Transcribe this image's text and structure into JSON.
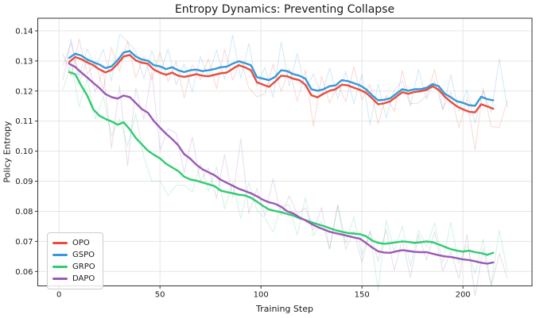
{
  "title": "Entropy Dynamics: Preventing Collapse",
  "axes": {
    "xlabel": "Training Step",
    "ylabel": "Policy Entropy",
    "x_ticks": [
      0,
      50,
      100,
      150,
      200
    ],
    "y_ticks": [
      0.06,
      0.07,
      0.08,
      0.09,
      0.1,
      0.11,
      0.12,
      0.13,
      0.14
    ],
    "xlim": [
      -10.5,
      234.2
    ],
    "ylim": [
      0.0552,
      0.1442
    ],
    "grid": true,
    "grid_color": "#e5e5e5",
    "spine_color": "#333333",
    "tick_color": "#333333"
  },
  "legend": {
    "position": "lower left",
    "entries": [
      {
        "label": "OPO",
        "color": "#e74c3c"
      },
      {
        "label": "GSPO",
        "color": "#3498db"
      },
      {
        "label": "GRPO",
        "color": "#2ecc71"
      },
      {
        "label": "DAPO",
        "color": "#9b59b6"
      }
    ]
  },
  "chart_data": {
    "type": "line",
    "title": "Entropy Dynamics: Preventing Collapse",
    "xlabel": "Training Step",
    "ylabel": "Policy Entropy",
    "x": [
      5,
      8,
      11,
      14,
      17,
      20,
      23,
      26,
      29,
      32,
      35,
      38,
      41,
      44,
      47,
      50,
      53,
      56,
      59,
      62,
      65,
      68,
      71,
      74,
      77,
      80,
      83,
      86,
      89,
      92,
      95,
      98,
      101,
      104,
      107,
      110,
      113,
      116,
      119,
      122,
      125,
      128,
      131,
      134,
      137,
      140,
      143,
      146,
      149,
      152,
      155,
      158,
      161,
      164,
      167,
      170,
      173,
      176,
      179,
      182,
      185,
      188,
      191,
      194,
      197,
      200,
      203,
      206,
      209,
      212,
      215
    ],
    "series": [
      {
        "name": "OPO",
        "color": "#e74c3c",
        "values": [
          0.1296,
          0.1313,
          0.1306,
          0.1295,
          0.1286,
          0.1272,
          0.1262,
          0.127,
          0.129,
          0.1315,
          0.132,
          0.1302,
          0.1294,
          0.1291,
          0.1271,
          0.1261,
          0.1254,
          0.1261,
          0.1251,
          0.1247,
          0.1251,
          0.1256,
          0.1251,
          0.1249,
          0.1254,
          0.1259,
          0.1261,
          0.1274,
          0.1286,
          0.1279,
          0.1269,
          0.1229,
          0.1221,
          0.1214,
          0.1231,
          0.1251,
          0.1249,
          0.1241,
          0.1236,
          0.1221,
          0.1186,
          0.1179,
          0.1191,
          0.1201,
          0.1206,
          0.1221,
          0.1219,
          0.1211,
          0.1204,
          0.1194,
          0.1176,
          0.1156,
          0.1159,
          0.1166,
          0.1181,
          0.1196,
          0.1191,
          0.1197,
          0.1199,
          0.1204,
          0.1216,
          0.1204,
          0.1181,
          0.1164,
          0.1149,
          0.1139,
          0.1131,
          0.1129,
          0.1156,
          0.1149,
          0.1141
        ]
      },
      {
        "name": "GSPO",
        "color": "#3498db",
        "values": [
          0.131,
          0.1324,
          0.1318,
          0.1305,
          0.1296,
          0.1288,
          0.1276,
          0.1282,
          0.1302,
          0.1328,
          0.1333,
          0.1315,
          0.1305,
          0.1301,
          0.1286,
          0.1282,
          0.1273,
          0.1279,
          0.1269,
          0.1263,
          0.1269,
          0.1271,
          0.1266,
          0.1269,
          0.1273,
          0.1279,
          0.1281,
          0.1291,
          0.1299,
          0.1293,
          0.1286,
          0.1246,
          0.1241,
          0.1236,
          0.1247,
          0.1269,
          0.1266,
          0.1256,
          0.1251,
          0.1241,
          0.1206,
          0.1201,
          0.1206,
          0.1216,
          0.1219,
          0.1236,
          0.1233,
          0.1226,
          0.1219,
          0.1206,
          0.1186,
          0.1169,
          0.1171,
          0.1176,
          0.1191,
          0.1206,
          0.1201,
          0.1206,
          0.1206,
          0.1211,
          0.1223,
          0.1216,
          0.1191,
          0.1179,
          0.1166,
          0.1161,
          0.1153,
          0.1151,
          0.1181,
          0.1173,
          0.1169
        ]
      },
      {
        "name": "GRPO",
        "color": "#2ecc71",
        "values": [
          0.1263,
          0.1256,
          0.1218,
          0.1185,
          0.1139,
          0.1118,
          0.1107,
          0.1099,
          0.1088,
          0.1096,
          0.1073,
          0.1044,
          0.1023,
          0.1002,
          0.0988,
          0.0976,
          0.0958,
          0.0946,
          0.0934,
          0.0915,
          0.0906,
          0.0902,
          0.0896,
          0.089,
          0.0884,
          0.0869,
          0.0864,
          0.086,
          0.0855,
          0.0853,
          0.0845,
          0.0832,
          0.0818,
          0.0806,
          0.0801,
          0.0797,
          0.0791,
          0.0786,
          0.0777,
          0.0771,
          0.0764,
          0.0757,
          0.0751,
          0.0744,
          0.0737,
          0.0732,
          0.0728,
          0.0726,
          0.0724,
          0.0717,
          0.0703,
          0.0695,
          0.0692,
          0.0694,
          0.0697,
          0.07,
          0.0698,
          0.0695,
          0.0697,
          0.07,
          0.0697,
          0.069,
          0.0682,
          0.0674,
          0.0669,
          0.0666,
          0.0669,
          0.0664,
          0.0661,
          0.0655,
          0.0662
        ]
      },
      {
        "name": "DAPO",
        "color": "#9b59b6",
        "values": [
          0.1291,
          0.128,
          0.1262,
          0.1245,
          0.1227,
          0.121,
          0.119,
          0.118,
          0.1175,
          0.1185,
          0.118,
          0.116,
          0.114,
          0.1128,
          0.11,
          0.1078,
          0.1058,
          0.104,
          0.102,
          0.099,
          0.0975,
          0.0955,
          0.094,
          0.093,
          0.092,
          0.0905,
          0.0895,
          0.0885,
          0.0875,
          0.0868,
          0.086,
          0.085,
          0.0838,
          0.083,
          0.0825,
          0.0815,
          0.08,
          0.0793,
          0.078,
          0.077,
          0.0758,
          0.0748,
          0.074,
          0.0732,
          0.0727,
          0.0723,
          0.0718,
          0.0713,
          0.0709,
          0.0695,
          0.068,
          0.0667,
          0.0663,
          0.0662,
          0.0667,
          0.0671,
          0.0668,
          0.0665,
          0.0664,
          0.0664,
          0.0659,
          0.0654,
          0.065,
          0.0648,
          0.0644,
          0.064,
          0.0638,
          0.0634,
          0.0629,
          0.0626,
          0.063
        ]
      }
    ],
    "raw_overlay": {
      "description": "faint unsmoothed traces behind each smoothed line",
      "opacity": 0.22,
      "x_start": 2,
      "x_step": 4,
      "x_end": 222,
      "noise": [
        0.0028,
        -0.0052,
        0.0065,
        -0.0038,
        0.0012,
        -0.006,
        0.0075,
        -0.0032,
        0.0048,
        -0.0058,
        0.0022,
        -0.0042,
        0.0068,
        -0.0025,
        0.0045,
        -0.007,
        0.0035,
        -0.0015,
        0.0058,
        -0.0048,
        0.0078,
        -0.0038,
        0.0018,
        -0.0062,
        0.0042,
        -0.0028,
        0.0065,
        -0.0052,
        0.0028,
        -0.0072,
        0.0048,
        -0.0022,
        0.0062,
        -0.0042,
        0.0015,
        -0.0055,
        0.007,
        -0.003,
        0.004,
        -0.0065,
        0.0025,
        -0.0045,
        0.0072,
        -0.0035,
        0.0052,
        -0.002,
        0.006,
        -0.005,
        0.0032,
        -0.0068,
        0.0042,
        -0.0025,
        0.0055,
        -0.0062,
        0.0018
      ],
      "series_noise": {
        "OPO": {
          "offset": 0,
          "scale": 1.0
        },
        "GSPO": {
          "offset": 13,
          "scale": 1.0
        },
        "GRPO": {
          "offset": 27,
          "scale": 1.15
        },
        "DAPO": {
          "offset": 41,
          "scale": 1.2
        }
      },
      "spikes": {
        "OPO": [
          [
            98,
            -0.009
          ],
          [
            126,
            -0.008
          ],
          [
            178,
            -0.009
          ],
          [
            206,
            -0.01
          ],
          [
            218,
            -0.008
          ]
        ],
        "GSPO": [
          [
            34,
            0.007
          ],
          [
            86,
            0.008
          ],
          [
            110,
            0.007
          ],
          [
            154,
            -0.008
          ],
          [
            218,
            0.007
          ]
        ],
        "GRPO": [
          [
            46,
            -0.014
          ],
          [
            54,
            -0.013
          ],
          [
            62,
            -0.011
          ],
          [
            102,
            -0.01
          ],
          [
            158,
            -0.011
          ],
          [
            214,
            -0.007
          ]
        ],
        "DAPO": [
          [
            26,
            -0.011
          ],
          [
            34,
            -0.015
          ],
          [
            46,
            0.009
          ],
          [
            90,
            0.011
          ],
          [
            118,
            0.009
          ],
          [
            206,
            -0.008
          ]
        ]
      }
    }
  }
}
